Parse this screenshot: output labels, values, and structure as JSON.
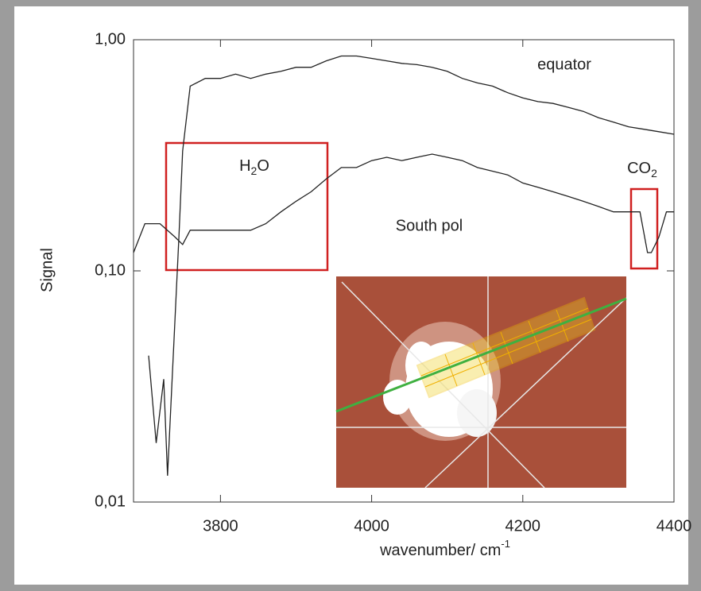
{
  "chart_data": {
    "type": "line",
    "x_label": "wavenumber/ cm",
    "x_label_sup": "-1",
    "y_label": "Signal",
    "log_y": true,
    "xlim": [
      3685,
      4400
    ],
    "xticks": [
      3800,
      4000,
      4200,
      4400
    ],
    "ylim": [
      0.01,
      1.0
    ],
    "yticks": [
      {
        "value": 0.01,
        "label": "0,01"
      },
      {
        "value": 0.1,
        "label": "0,10"
      },
      {
        "value": 1.0,
        "label": "1,00"
      }
    ],
    "series": [
      {
        "name": "equator",
        "color": "#222222",
        "x": [
          3705,
          3715,
          3725,
          3730,
          3740,
          3745,
          3750,
          3760,
          3780,
          3800,
          3820,
          3840,
          3860,
          3880,
          3900,
          3920,
          3940,
          3960,
          3980,
          4000,
          4020,
          4040,
          4060,
          4080,
          4100,
          4120,
          4140,
          4160,
          4180,
          4200,
          4220,
          4240,
          4260,
          4280,
          4300,
          4320,
          4340,
          4360,
          4380,
          4400
        ],
        "values": [
          0.043,
          0.018,
          0.034,
          0.013,
          0.063,
          0.14,
          0.33,
          0.63,
          0.68,
          0.68,
          0.71,
          0.68,
          0.71,
          0.73,
          0.76,
          0.76,
          0.81,
          0.85,
          0.85,
          0.83,
          0.81,
          0.79,
          0.78,
          0.76,
          0.73,
          0.68,
          0.65,
          0.63,
          0.59,
          0.56,
          0.54,
          0.53,
          0.51,
          0.49,
          0.46,
          0.44,
          0.42,
          0.41,
          0.4,
          0.39
        ]
      },
      {
        "name": "South pol",
        "color": "#222222",
        "x": [
          3685,
          3700,
          3720,
          3740,
          3750,
          3760,
          3780,
          3800,
          3820,
          3840,
          3860,
          3880,
          3900,
          3920,
          3940,
          3960,
          3980,
          4000,
          4020,
          4040,
          4060,
          4080,
          4100,
          4120,
          4140,
          4160,
          4180,
          4200,
          4220,
          4240,
          4260,
          4280,
          4300,
          4320,
          4340,
          4355,
          4365,
          4370,
          4380,
          4390,
          4400
        ],
        "values": [
          0.12,
          0.16,
          0.16,
          0.14,
          0.13,
          0.15,
          0.15,
          0.15,
          0.15,
          0.15,
          0.16,
          0.18,
          0.2,
          0.22,
          0.25,
          0.28,
          0.28,
          0.3,
          0.31,
          0.3,
          0.31,
          0.32,
          0.31,
          0.3,
          0.28,
          0.27,
          0.26,
          0.24,
          0.23,
          0.22,
          0.21,
          0.2,
          0.19,
          0.18,
          0.18,
          0.18,
          0.12,
          0.12,
          0.14,
          0.18,
          0.18
        ]
      }
    ],
    "annotations": [
      {
        "text": "H",
        "sub": "2",
        "suffix": "O"
      },
      {
        "text": "CO",
        "sub": "2"
      }
    ]
  }
}
